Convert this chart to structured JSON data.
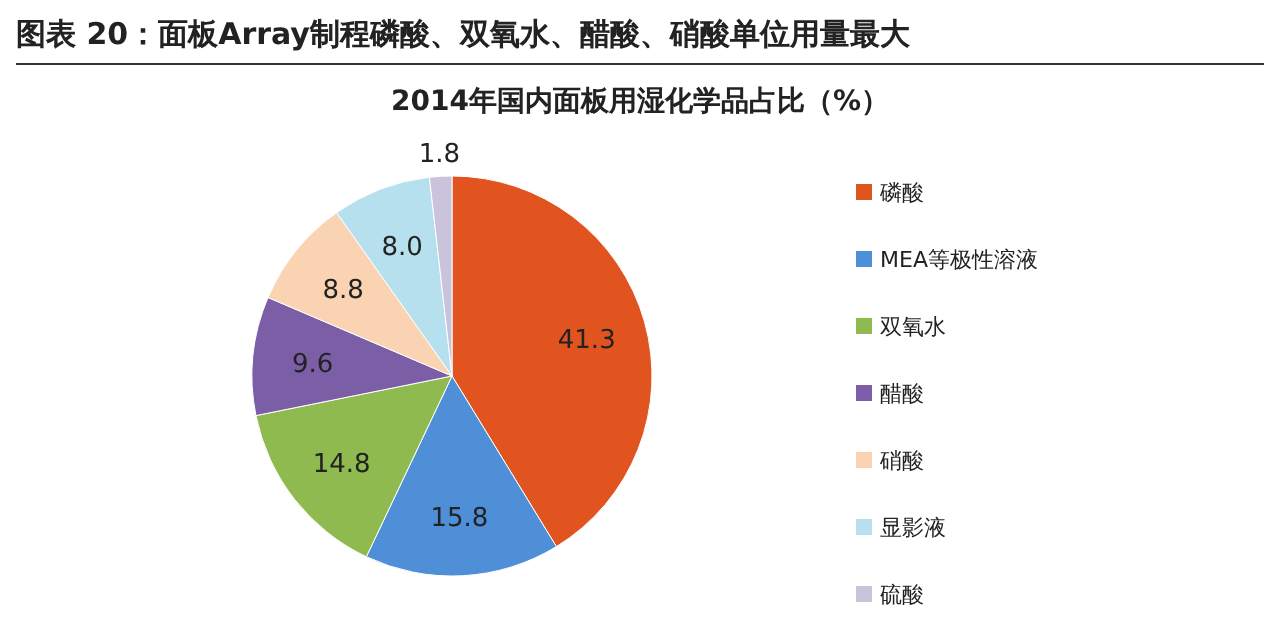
{
  "chart_data": {
    "type": "pie",
    "title": "图表 20：面板Array制程磷酸、双氧水、醋酸、硝酸单位用量最大",
    "subtitle": "2014年国内面板用湿化学品占比（%）",
    "categories": [
      "磷酸",
      "MEA等极性溶液",
      "双氧水",
      "醋酸",
      "硝酸",
      "显影液",
      "硫酸"
    ],
    "values": [
      41.3,
      15.8,
      14.8,
      9.6,
      8.8,
      8.0,
      1.8
    ],
    "colors": [
      "#e2541f",
      "#4f8fd8",
      "#8fba4f",
      "#7b5ea6",
      "#fad3b2",
      "#b7e0ee",
      "#c9c3dc"
    ],
    "value_labels": [
      "41.3",
      "15.8",
      "14.8",
      "9.6",
      "8.8",
      "8.0",
      "1.8"
    ],
    "legend": "right"
  }
}
